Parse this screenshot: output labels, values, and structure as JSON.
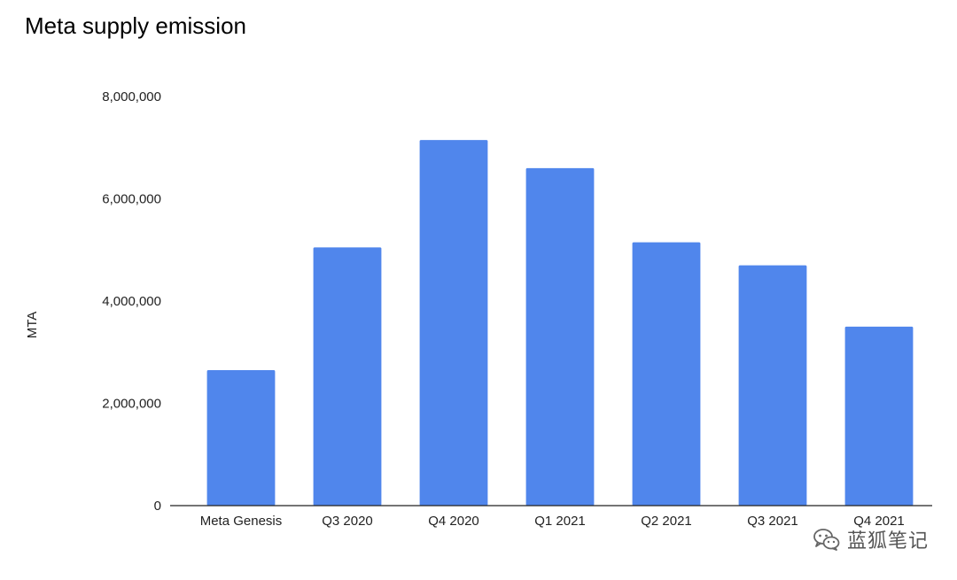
{
  "chart_data": {
    "type": "bar",
    "title": "Meta supply emission",
    "xlabel": "",
    "ylabel": "MTA",
    "categories": [
      "Meta Genesis",
      "Q3 2020",
      "Q4 2020",
      "Q1 2021",
      "Q2 2021",
      "Q3 2021",
      "Q4 2021"
    ],
    "values": [
      2650000,
      5050000,
      7150000,
      6600000,
      5150000,
      4700000,
      3500000
    ],
    "ylim": [
      0,
      8000000
    ],
    "yticks": [
      0,
      2000000,
      4000000,
      6000000,
      8000000
    ],
    "ytick_labels": [
      "0",
      "2,000,000",
      "4,000,000",
      "6,000,000",
      "8,000,000"
    ],
    "bar_color": "#5086ec",
    "grid": false,
    "legend": "none"
  },
  "watermark": {
    "text": "蓝狐笔记",
    "icon": "wechat-icon"
  }
}
